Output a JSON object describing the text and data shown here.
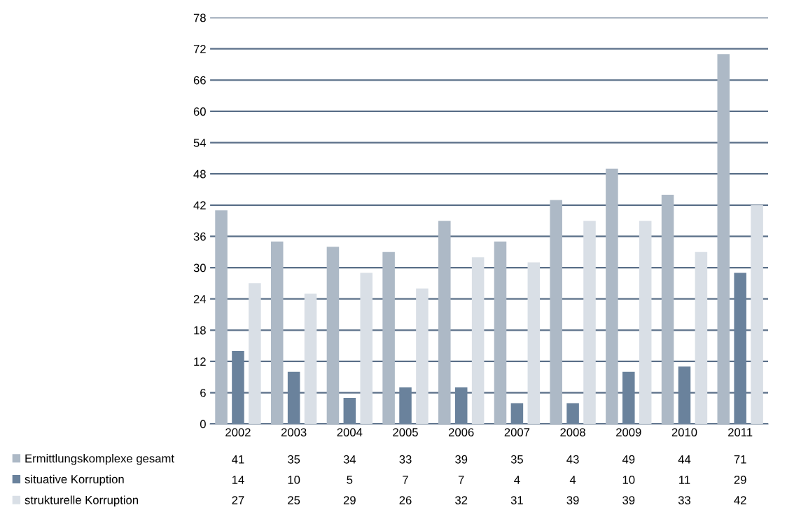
{
  "chart_data": {
    "type": "bar",
    "categories": [
      "2002",
      "2003",
      "2004",
      "2005",
      "2006",
      "2007",
      "2008",
      "2009",
      "2010",
      "2011"
    ],
    "series": [
      {
        "name": "Ermittlungskomplexe gesamt",
        "color": "#adb9c6",
        "values": [
          41,
          35,
          34,
          33,
          39,
          35,
          43,
          49,
          44,
          71
        ]
      },
      {
        "name": "situative Korruption",
        "color": "#6a829c",
        "values": [
          14,
          10,
          5,
          7,
          7,
          4,
          4,
          10,
          11,
          29
        ]
      },
      {
        "name": "strukturelle Korruption",
        "color": "#d9dfe6",
        "values": [
          27,
          25,
          29,
          26,
          32,
          31,
          39,
          39,
          33,
          42
        ]
      }
    ],
    "ylim": [
      0,
      78
    ],
    "yticks": [
      0,
      6,
      12,
      18,
      24,
      30,
      36,
      42,
      48,
      54,
      60,
      66,
      72,
      78
    ],
    "grid": "y",
    "legend": "bottom left",
    "data_labels": true
  }
}
